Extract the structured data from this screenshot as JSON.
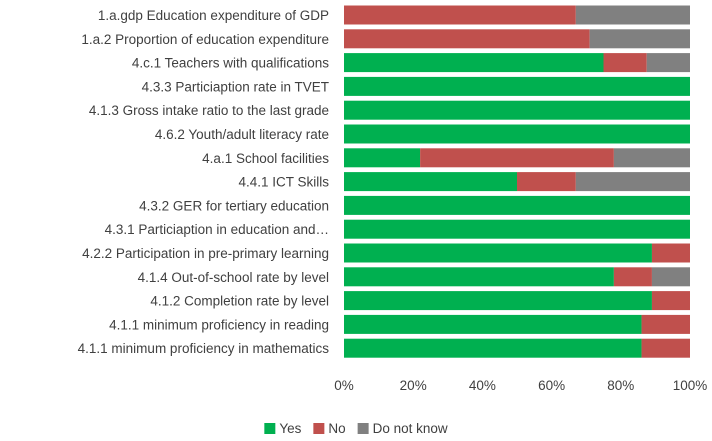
{
  "chart_data": {
    "type": "bar",
    "orientation": "horizontal",
    "stacked": "percent",
    "categories": [
      "1.a.gdp Education expenditure of GDP",
      "1.a.2 Proportion of education expenditure",
      "4.c.1 Teachers with qualifications",
      "4.3.3 Particiaption rate in TVET",
      "4.1.3 Gross intake ratio to the last grade",
      "4.6.2 Youth/adult literacy rate",
      "4.a.1 School facilities",
      "4.4.1 ICT Skills",
      "4.3.2 GER for tertiary education",
      "4.3.1 Particiaption in education and…",
      "4.2.2 Participation in pre-primary learning",
      "4.1.4 Out-of-school rate by level",
      "4.1.2 Completion rate by level",
      "4.1.1 minimum proficiency in reading",
      "4.1.1 minimum proficiency in mathematics"
    ],
    "series": [
      {
        "name": "Yes",
        "color": "#00b050",
        "values": [
          0,
          0,
          75,
          100,
          100,
          100,
          22,
          50,
          100,
          100,
          89,
          78,
          89,
          86,
          86
        ]
      },
      {
        "name": "No",
        "color": "#c0504d",
        "values": [
          67,
          71,
          12.5,
          0,
          0,
          0,
          56,
          17,
          0,
          0,
          11,
          11,
          11,
          14,
          14
        ]
      },
      {
        "name": "Do not know",
        "color": "#808080",
        "values": [
          33,
          29,
          12.5,
          0,
          0,
          0,
          22,
          33,
          0,
          0,
          0,
          11,
          0,
          0,
          0
        ]
      }
    ],
    "xticks": [
      "0%",
      "20%",
      "40%",
      "60%",
      "80%",
      "100%"
    ],
    "xlim": [
      0,
      100
    ],
    "title": "",
    "xlabel": "",
    "ylabel": "",
    "grid": false,
    "legend_position": "bottom"
  }
}
